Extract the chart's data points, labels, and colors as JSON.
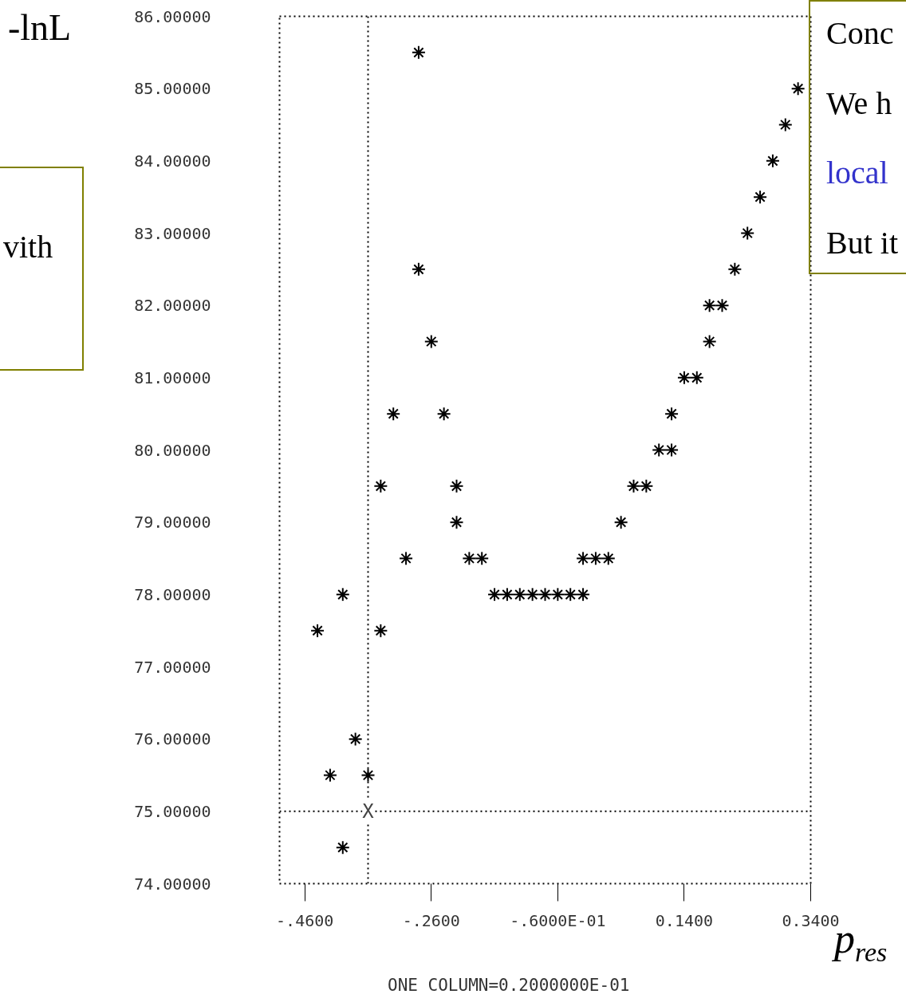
{
  "chart_data": {
    "type": "scatter",
    "xlabel": "p$_{res}$",
    "ylabel": "-lnL",
    "marker": "cross",
    "grid": false,
    "series": [
      {
        "color": "#000000",
        "x": [
          -0.28,
          0.32,
          0.3,
          0.28,
          0.26,
          0.24,
          -0.28,
          0.22,
          0.18,
          0.2,
          -0.26,
          0.18,
          0.14,
          0.16,
          -0.32,
          -0.24,
          0.12,
          0.1,
          0.12,
          -0.34,
          -0.22,
          0.06,
          0.08,
          -0.22,
          0.04,
          -0.3,
          -0.2,
          -0.18,
          -0.02,
          0.0,
          0.02,
          -0.4,
          -0.16,
          -0.14,
          -0.12,
          -0.1,
          -0.08,
          -0.06,
          -0.04,
          -0.02,
          -0.44,
          -0.34,
          -0.38,
          -0.42,
          -0.36,
          -0.4
        ],
        "values": [
          85.5,
          85,
          84.5,
          84,
          83.5,
          83,
          82.5,
          82.5,
          82,
          82,
          81.5,
          81.5,
          81,
          81,
          80.5,
          80.5,
          80.5,
          80,
          80,
          79.5,
          79.5,
          79.5,
          79.5,
          79,
          79,
          78.5,
          78.5,
          78.5,
          78.5,
          78.5,
          78.5,
          78,
          78,
          78,
          78,
          78,
          78,
          78,
          78,
          78,
          77.5,
          77.5,
          76,
          75.5,
          75.5,
          74.5
        ]
      }
    ],
    "xlim": [
      -0.5,
      0.34
    ],
    "ylim": [
      74,
      86
    ],
    "xticks": [
      {
        "value": -0.46,
        "label": "-.4600"
      },
      {
        "value": -0.26,
        "label": "-.2600"
      },
      {
        "value": -0.06,
        "label": "-.6000E-01"
      },
      {
        "value": 0.14,
        "label": "0.1400"
      },
      {
        "value": 0.34,
        "label": "0.3400"
      }
    ],
    "yticks": [
      {
        "value": 74,
        "label": "74.00000"
      },
      {
        "value": 75,
        "label": "75.00000"
      },
      {
        "value": 76,
        "label": "76.00000"
      },
      {
        "value": 77,
        "label": "77.00000"
      },
      {
        "value": 78,
        "label": "78.00000"
      },
      {
        "value": 79,
        "label": "79.00000"
      },
      {
        "value": 80,
        "label": "80.00000"
      },
      {
        "value": 81,
        "label": "81.00000"
      },
      {
        "value": 82,
        "label": "82.00000"
      },
      {
        "value": 83,
        "label": "83.00000"
      },
      {
        "value": 84,
        "label": "84.00000"
      },
      {
        "value": 85,
        "label": "85.00000"
      },
      {
        "value": 86,
        "label": "86.00000"
      }
    ],
    "ref_lines": [
      {
        "axis": "y",
        "value": 75,
        "line_style": "dotted",
        "color": "#000000"
      },
      {
        "axis": "x",
        "value": -0.36,
        "line_style": "dotted",
        "color": "#000000"
      }
    ],
    "annotations": [
      "ONE COLUMN=0.2000000E-01",
      "Conc",
      "We h",
      "local",
      "But it",
      "vith",
      {
        "text": "X",
        "x": -0.36,
        "y": 75
      }
    ]
  }
}
